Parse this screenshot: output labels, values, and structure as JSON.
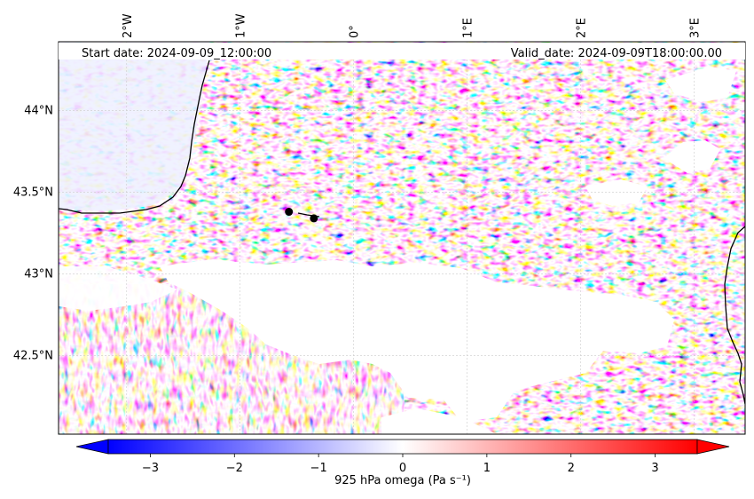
{
  "map": {
    "start_date_text": "Start date: 2024-09-09_12:00:00",
    "valid_date_text": "Valid_date: 2024-09-09T18:00:00.00",
    "longitude_labels": [
      "2°W",
      "1°W",
      "0°",
      "1°E",
      "2°E",
      "3°E"
    ],
    "latitude_labels": [
      "44°N",
      "43.5°N",
      "43°N",
      "42.5°N"
    ],
    "longitude_values": [
      -2,
      -1,
      0,
      1,
      2,
      3
    ],
    "latitude_values": [
      44,
      43.5,
      43,
      42.5
    ],
    "extent": {
      "lon_min": -2.6,
      "lon_max": 3.45,
      "lat_min": 42.02,
      "lat_max": 44.42
    },
    "points_of_interest": [
      {
        "name": "",
        "lon": -0.57,
        "lat": 43.38
      },
      {
        "name": "",
        "lon": -0.35,
        "lat": 43.34
      }
    ],
    "masked_region_color": "#ffffff",
    "coastline_color": "#000000"
  },
  "colorbar": {
    "label": "925 hPa omega (Pa s⁻¹)",
    "tick_labels": [
      "−3",
      "−2",
      "−1",
      "0",
      "1",
      "2",
      "3"
    ],
    "tick_values": [
      -3,
      -2,
      -1,
      0,
      1,
      2,
      3
    ],
    "vmin": -3.5,
    "vmax": 3.5,
    "extend": "both",
    "colors": {
      "min": "#0000ff",
      "mid": "#ffffff",
      "max": "#ff0000"
    }
  }
}
